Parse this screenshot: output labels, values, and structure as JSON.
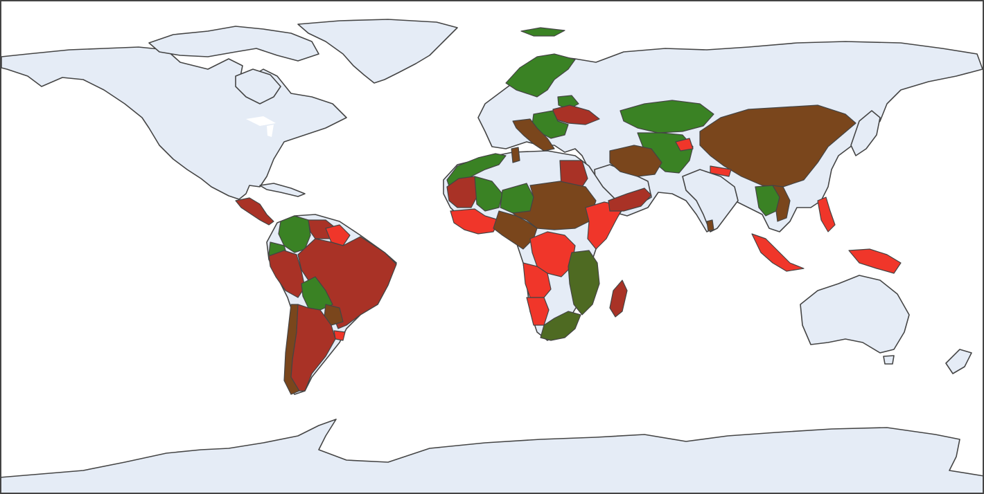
{
  "map": {
    "projection": "equirectangular",
    "background_color": "#ffffff",
    "land_color": "#e5ecf6",
    "coastline_color": "#444444",
    "frame_color": "#444444",
    "category_colors": {
      "dark_red": "#a93226",
      "bright_red": "#f0362a",
      "brown": "#7a461c",
      "green": "#3a8224",
      "olive": "#4e6a22"
    },
    "region_categories": {
      "central-america": "dark_red",
      "colombia": "green",
      "ecuador": "green",
      "venezuela": "dark_red",
      "guianas": "bright_red",
      "brazil": "dark_red",
      "peru": "dark_red",
      "bolivia": "green",
      "paraguay": "brown",
      "uruguay": "bright_red",
      "chile": "brown",
      "argentina": "dark_red",
      "scandinavia": "green",
      "svalbard": "green",
      "baltic-states": "green",
      "ukraine": "dark_red",
      "eastern-europe": "green",
      "italy-balkans": "brown",
      "morocco-algeria-coast": "green",
      "tunisia": "brown",
      "egypt": "dark_red",
      "mauritania": "dark_red",
      "mali": "green",
      "niger": "green",
      "sahel-belt": "brown",
      "west-africa-coast": "bright_red",
      "central-africa": "brown",
      "horn-of-africa": "bright_red",
      "drc": "bright_red",
      "angola": "bright_red",
      "namibia": "bright_red",
      "tanzania-mozambique": "olive",
      "southern-africa": "olive",
      "madagascar": "dark_red",
      "yemen-oman": "dark_red",
      "kazakhstan": "green",
      "central-asia": "green",
      "iran-region": "brown",
      "china": "brown",
      "tajikistan": "bright_red",
      "nepal": "bright_red",
      "sri-lanka": "brown",
      "southeast-asia-mainland": "green",
      "vietnam": "brown",
      "indonesia": "bright_red",
      "philippines": "bright_red",
      "papua-new-guinea": "bright_red"
    }
  }
}
